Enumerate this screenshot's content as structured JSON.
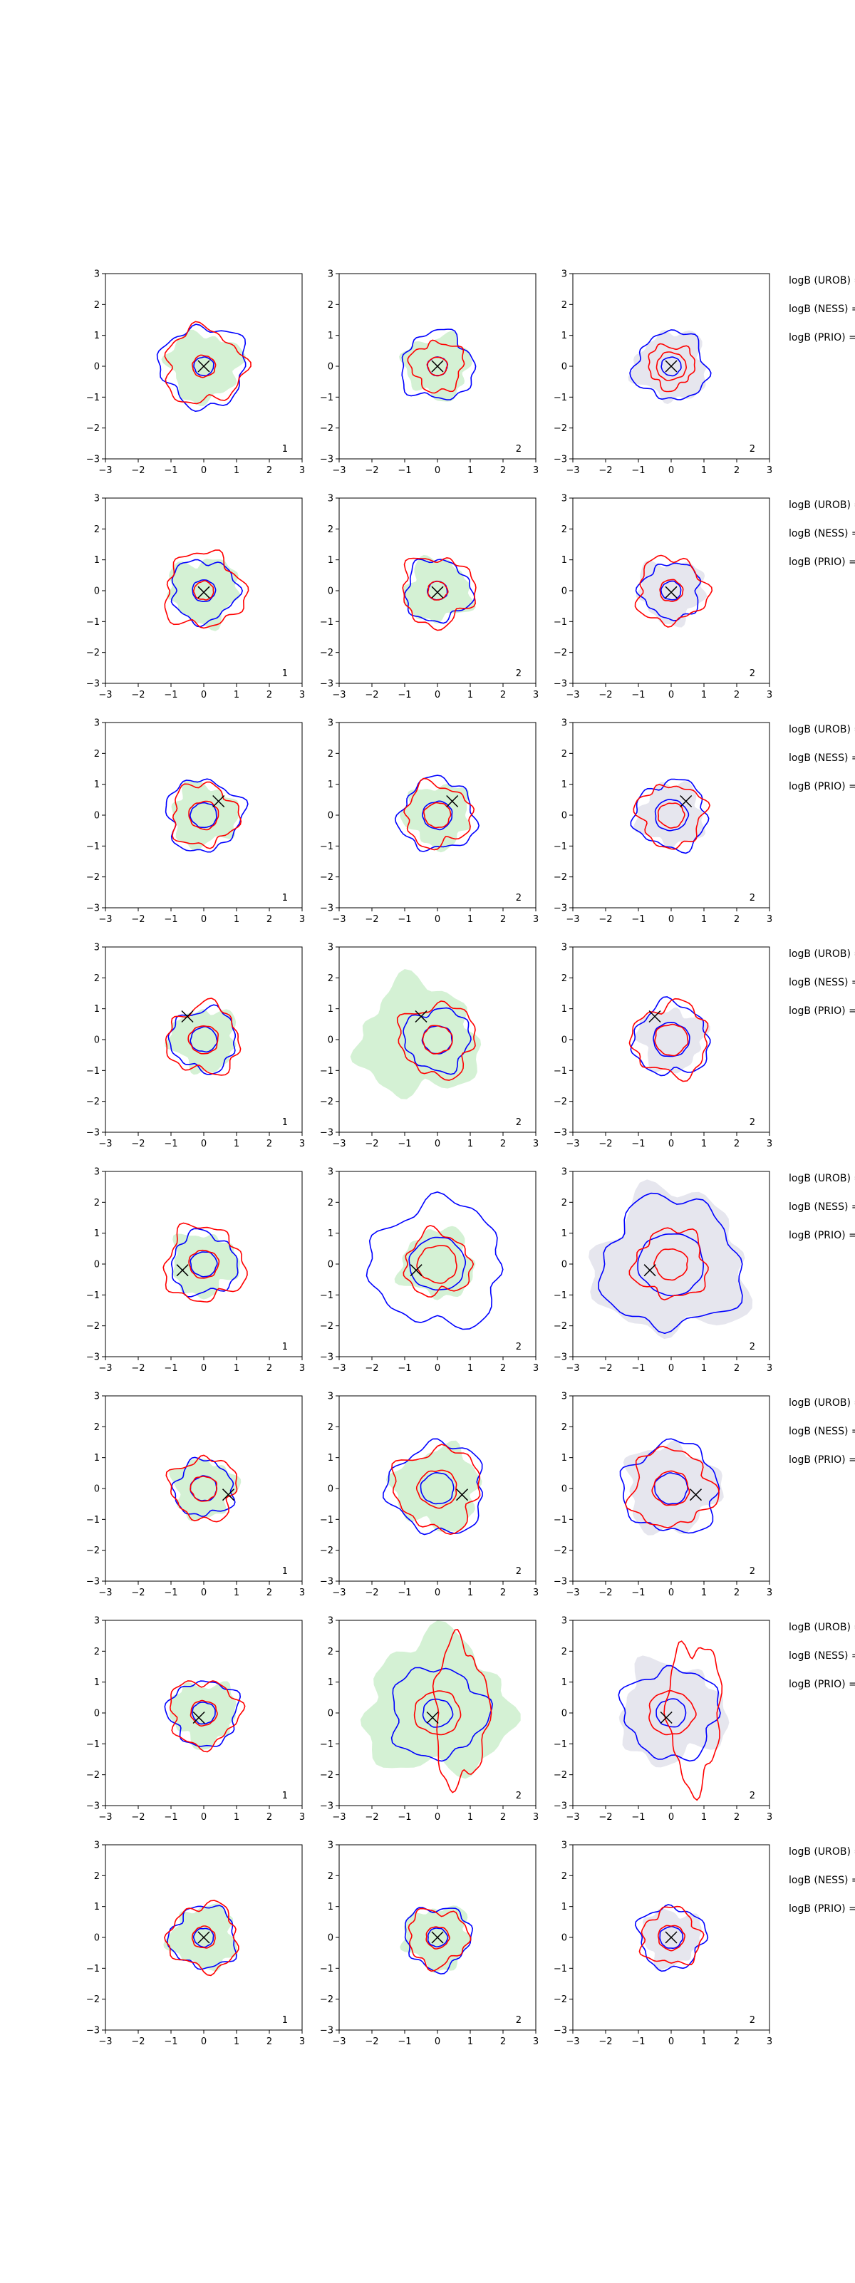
{
  "chart_data": {
    "type": "contour",
    "layout": {
      "rows": 8,
      "cols": 3
    },
    "xlim": [
      -3,
      3
    ],
    "ylim": [
      -3,
      3
    ],
    "xticks": [
      -3,
      -2,
      -1,
      0,
      1,
      2,
      3
    ],
    "yticks": [
      -3,
      -2,
      -1,
      0,
      1,
      2,
      3
    ],
    "row_labels": [
      "logB (UROB) =",
      "logB (NESS) =",
      "logB (PRIO) ="
    ],
    "panel_labels": [
      "1",
      "2",
      "2"
    ],
    "colors": {
      "fill_green": "#d4f1d4",
      "fill_gray": "#e6e6ee",
      "blue": "#0000ff",
      "red": "#ff0000",
      "marker": "#000000",
      "frame": "#000000"
    },
    "rows": [
      {
        "marker": [
          0,
          0
        ],
        "panels": [
          {
            "fill": {
              "color": "green",
              "r": 1.1
            },
            "blue": [
              0.3,
              1.3
            ],
            "red": [
              0.35,
              1.2
            ],
            "label": "1"
          },
          {
            "fill": {
              "color": "green",
              "r": 1.0
            },
            "blue": [
              0.3,
              1.1
            ],
            "red": [
              0.3,
              0.8
            ],
            "label": "2"
          },
          {
            "fill": {
              "color": "gray",
              "r": 1.1
            },
            "blue": [
              0.3,
              1.1
            ],
            "red": [
              0.45,
              0.7
            ],
            "label": "2"
          }
        ]
      },
      {
        "marker": [
          0,
          -0.05
        ],
        "panels": [
          {
            "fill": {
              "color": "green",
              "r": 1.05
            },
            "blue": [
              0.35,
              1.0
            ],
            "red": [
              0.3,
              1.2
            ],
            "label": "1"
          },
          {
            "fill": {
              "color": "green",
              "r": 1.0
            },
            "blue": [
              0.3,
              1.0
            ],
            "red": [
              0.3,
              1.1
            ],
            "label": "2"
          },
          {
            "fill": {
              "color": "gray",
              "r": 1.0
            },
            "blue": [
              0.3,
              0.9
            ],
            "red": [
              0.35,
              1.05
            ],
            "label": "2"
          }
        ]
      },
      {
        "marker": [
          0.45,
          0.45
        ],
        "panels": [
          {
            "fill": {
              "color": "green",
              "r": 1.0
            },
            "blue": [
              0.4,
              1.15
            ],
            "red": [
              0.45,
              1.0
            ],
            "label": "1"
          },
          {
            "fill": {
              "color": "green",
              "r": 1.0
            },
            "blue": [
              0.45,
              1.15
            ],
            "red": [
              0.4,
              1.0
            ],
            "label": "2"
          },
          {
            "fill": {
              "color": "gray",
              "r": 1.0
            },
            "blue": [
              0.5,
              1.1
            ],
            "red": [
              0.4,
              1.0
            ],
            "label": "2"
          }
        ]
      },
      {
        "marker": [
          -0.5,
          0.75
        ],
        "panels": [
          {
            "fill": {
              "color": "green",
              "r": 1.0
            },
            "blue": [
              0.4,
              1.0
            ],
            "red": [
              0.45,
              1.1
            ],
            "label": "1"
          },
          {
            "fill": {
              "color": "green",
              "r": 1.8,
              "dx": -0.6
            },
            "blue": [
              0.45,
              1.0
            ],
            "red": [
              0.45,
              1.15
            ],
            "label": "2"
          },
          {
            "fill": {
              "color": "gray",
              "r": 1.0
            },
            "blue": [
              0.55,
              1.15
            ],
            "red": [
              0.5,
              1.15
            ],
            "label": "2"
          }
        ]
      },
      {
        "marker": [
          -0.65,
          -0.2
        ],
        "panels": [
          {
            "fill": {
              "color": "green",
              "r": 1.0
            },
            "blue": [
              0.4,
              1.0
            ],
            "red": [
              0.45,
              1.2
            ],
            "label": "1"
          },
          {
            "fill": {
              "color": "green",
              "r": 1.1
            },
            "blue": [
              0.85,
              2.0
            ],
            "red": [
              0.6,
              1.0
            ],
            "label": "2"
          },
          {
            "fill": {
              "color": "gray",
              "r": 2.3
            },
            "blue": [
              1.0,
              2.1
            ],
            "red": [
              0.5,
              1.1
            ],
            "label": "2"
          }
        ]
      },
      {
        "marker": [
          0.75,
          -0.2
        ],
        "panels": [
          {
            "fill": {
              "color": "green",
              "r": 0.95
            },
            "blue": [
              0.4,
              0.9
            ],
            "red": [
              0.4,
              1.0
            ],
            "label": "1"
          },
          {
            "fill": {
              "color": "green",
              "r": 1.3
            },
            "blue": [
              0.5,
              1.45
            ],
            "red": [
              0.6,
              1.3
            ],
            "label": "2"
          },
          {
            "fill": {
              "color": "gray",
              "r": 1.4
            },
            "blue": [
              0.5,
              1.45
            ],
            "red": [
              0.55,
              1.25
            ],
            "label": "2"
          }
        ]
      },
      {
        "marker": [
          -0.15,
          -0.15
        ],
        "panels": [
          {
            "fill": {
              "color": "green",
              "r": 1.0
            },
            "blue": [
              0.35,
              1.05
            ],
            "red": [
              0.4,
              1.05
            ],
            "label": "1"
          },
          {
            "fill": {
              "color": "green",
              "r": 2.2,
              "dy": 0.2
            },
            "blue": [
              0.45,
              1.45
            ],
            "red": [
              0.7,
              2.3
            ],
            "label": "2"
          },
          {
            "fill": {
              "color": "gray",
              "r": 1.6
            },
            "blue": [
              0.45,
              1.45
            ],
            "red": [
              0.7,
              2.3
            ],
            "label": "2"
          }
        ]
      },
      {
        "marker": [
          0,
          0
        ],
        "panels": [
          {
            "fill": {
              "color": "green",
              "r": 1.0
            },
            "blue": [
              0.3,
              1.0
            ],
            "red": [
              0.35,
              1.05
            ],
            "label": "1"
          },
          {
            "fill": {
              "color": "green",
              "r": 1.0
            },
            "blue": [
              0.3,
              1.0
            ],
            "red": [
              0.35,
              0.9
            ],
            "label": "2"
          },
          {
            "fill": {
              "color": "gray",
              "r": 0.9
            },
            "blue": [
              0.35,
              1.0
            ],
            "red": [
              0.4,
              0.9
            ],
            "label": "2"
          }
        ]
      }
    ]
  }
}
